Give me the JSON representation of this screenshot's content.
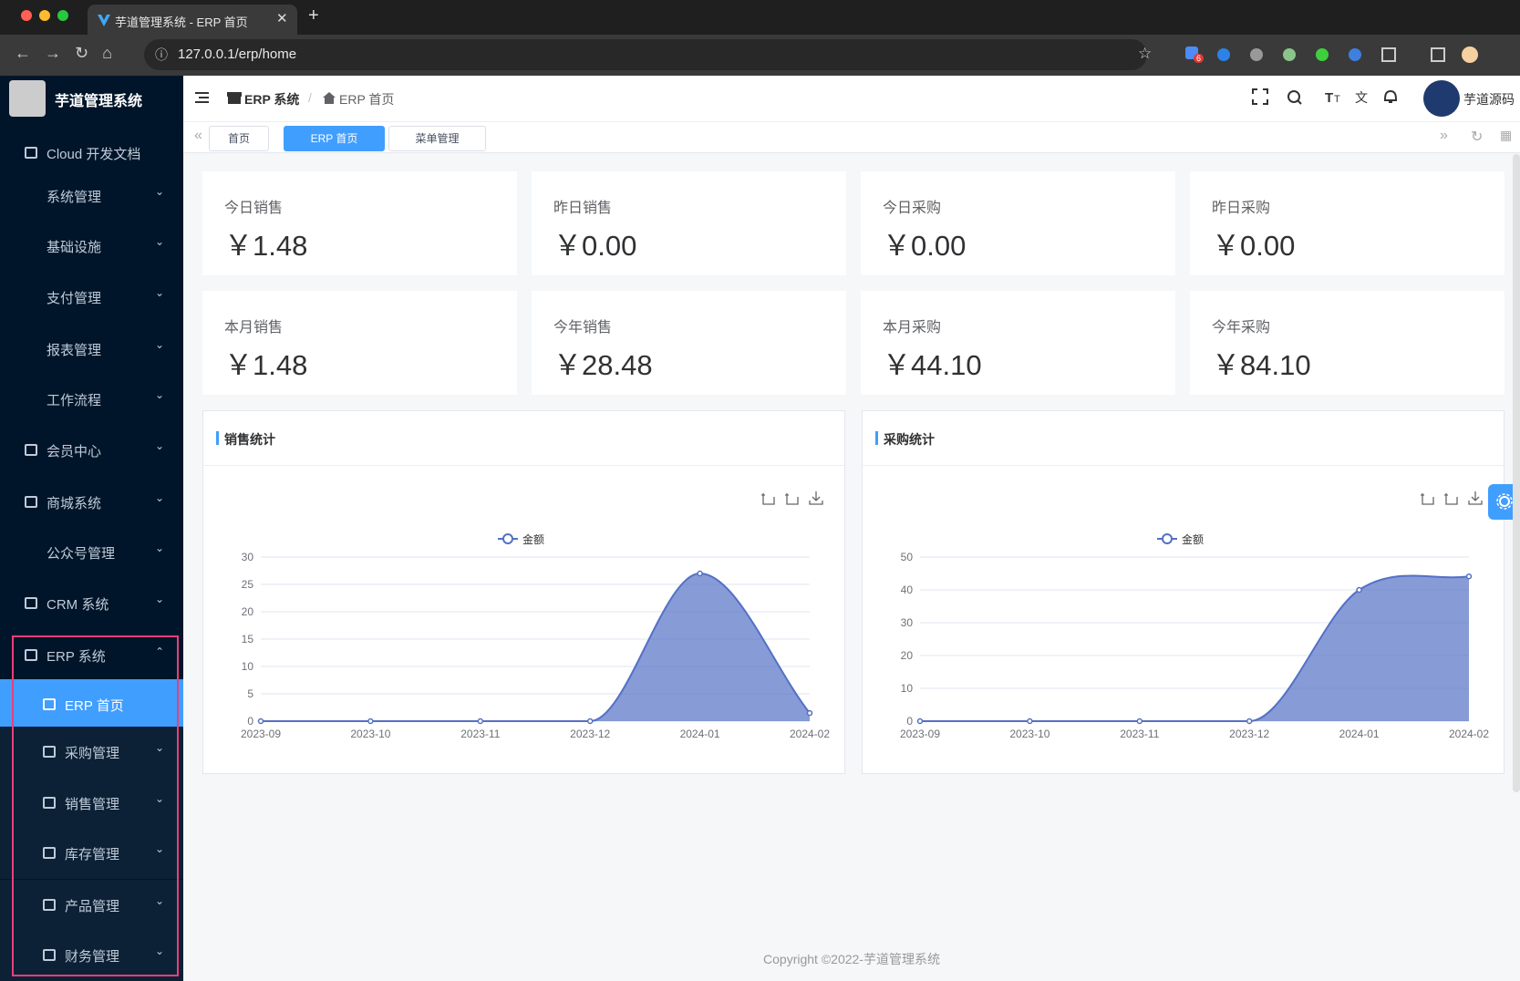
{
  "browser": {
    "tab_title": "芋道管理系统 - ERP 首页",
    "url": "127.0.0.1/erp/home",
    "badge": "6"
  },
  "sidebar": {
    "brand": "芋道管理系统",
    "items": [
      "Cloud 开发文档",
      "系统管理",
      "基础设施",
      "支付管理",
      "报表管理",
      "工作流程",
      "会员中心",
      "商城系统",
      "公众号管理",
      "CRM 系统",
      "ERP 系统",
      "ERP 首页",
      "采购管理",
      "销售管理",
      "库存管理",
      "产品管理",
      "财务管理"
    ]
  },
  "header": {
    "breadcrumb": [
      "ERP 系统",
      "ERP 首页"
    ],
    "user": "芋道源码"
  },
  "tabs": [
    "首页",
    "ERP 首页",
    "菜单管理"
  ],
  "stats": [
    {
      "label": "今日销售",
      "value": "￥1.48"
    },
    {
      "label": "昨日销售",
      "value": "￥0.00"
    },
    {
      "label": "今日采购",
      "value": "￥0.00"
    },
    {
      "label": "昨日采购",
      "value": "￥0.00"
    },
    {
      "label": "本月销售",
      "value": "￥1.48"
    },
    {
      "label": "今年销售",
      "value": "￥28.48"
    },
    {
      "label": "本月采购",
      "value": "￥44.10"
    },
    {
      "label": "今年采购",
      "value": "￥84.10"
    }
  ],
  "charts": [
    {
      "type": "area",
      "title": "销售统计",
      "legend": "金额",
      "color": "#5470c6",
      "categories": [
        "2023-09",
        "2023-10",
        "2023-11",
        "2023-12",
        "2024-01",
        "2024-02"
      ],
      "values": [
        0,
        0,
        0,
        0,
        27,
        1.48
      ],
      "ylim": [
        0,
        30
      ],
      "yticks": [
        0,
        5,
        10,
        15,
        20,
        25,
        30
      ],
      "grid": true
    },
    {
      "type": "area",
      "title": "采购统计",
      "legend": "金额",
      "color": "#5470c6",
      "categories": [
        "2023-09",
        "2023-10",
        "2023-11",
        "2023-12",
        "2024-01",
        "2024-02"
      ],
      "values": [
        0,
        0,
        0,
        0,
        40,
        44.1
      ],
      "ylim": [
        0,
        50
      ],
      "yticks": [
        0,
        10,
        20,
        30,
        40,
        50
      ],
      "grid": true
    }
  ],
  "footer": "Copyright ©2022-芋道管理系统"
}
